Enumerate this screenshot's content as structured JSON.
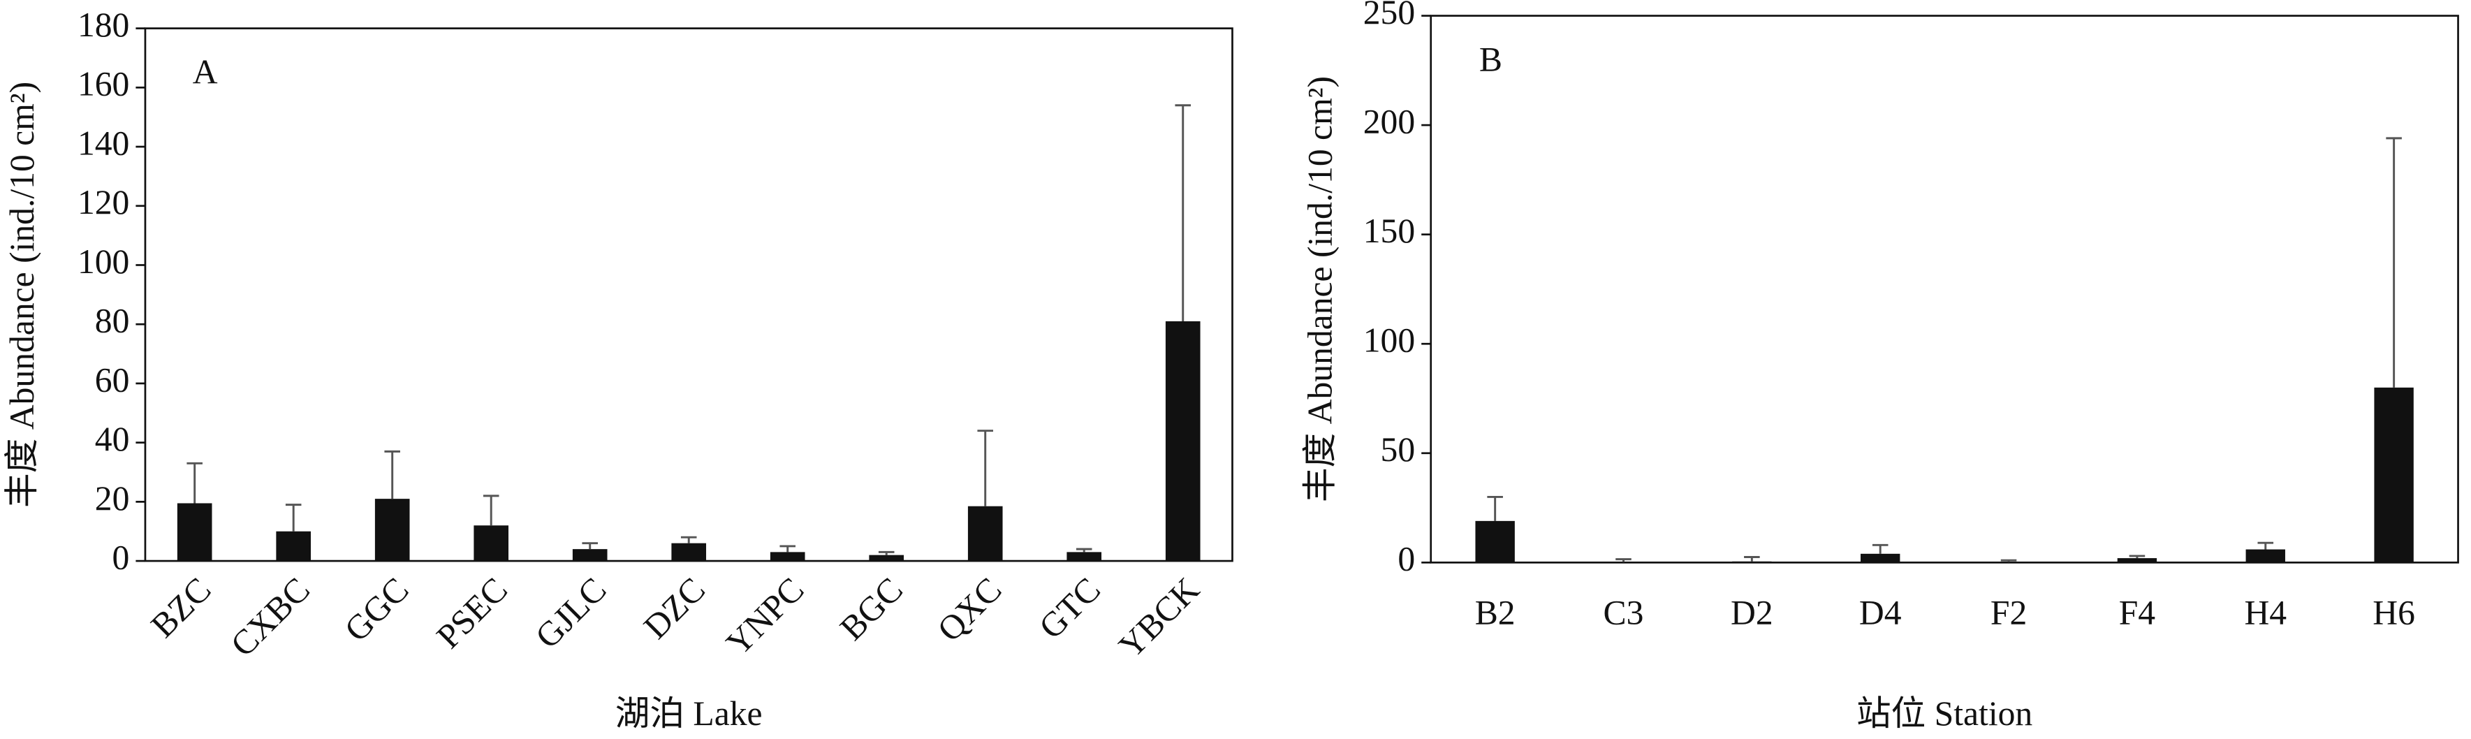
{
  "chart_data": [
    {
      "type": "bar",
      "annotation": "A",
      "x_label": "湖泊 Lake",
      "y_label": "丰度 Abundance (ind./10 cm²)",
      "categories": [
        "BZC",
        "CXBC",
        "GGC",
        "PSEC",
        "GJLC",
        "DZC",
        "YNPC",
        "BGC",
        "QXC",
        "GTC",
        "YBCK"
      ],
      "values": [
        19.5,
        10,
        21,
        12,
        4,
        6,
        3,
        2,
        18.5,
        3,
        81
      ],
      "errors": [
        13.5,
        9,
        16,
        10,
        2,
        2,
        2,
        1,
        25.5,
        1,
        73
      ],
      "color": "#111111",
      "ylim": [
        0,
        180
      ],
      "yticks": [
        0,
        20,
        40,
        60,
        80,
        100,
        120,
        140,
        160,
        180
      ],
      "xtick_rotation": 45
    },
    {
      "type": "bar",
      "annotation": "B",
      "x_label": "站位 Station",
      "y_label": "丰度 Abundance (ind./10 cm²)",
      "categories": [
        "B2",
        "C3",
        "D2",
        "D4",
        "F2",
        "F4",
        "H4",
        "H6"
      ],
      "values": [
        19,
        0.3,
        0.5,
        4,
        0.3,
        2,
        6,
        80
      ],
      "errors": [
        11,
        1.2,
        2,
        4,
        0.7,
        1,
        3,
        114
      ],
      "color": "#111111",
      "ylim": [
        0,
        250
      ],
      "yticks": [
        0,
        50,
        100,
        150,
        200,
        250
      ],
      "xtick_rotation": 0
    }
  ]
}
